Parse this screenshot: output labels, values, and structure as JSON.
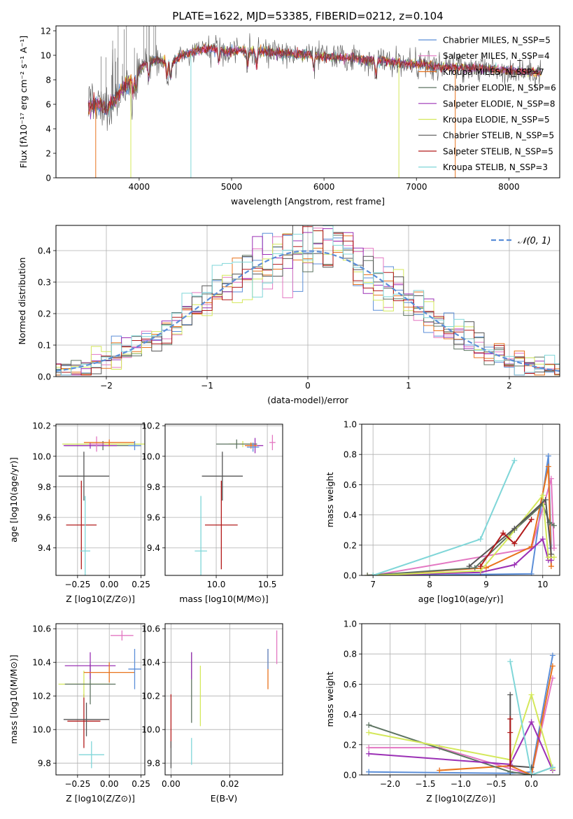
{
  "figure_title": "PLATE=1622, MJD=53385, FIBERID=0212, z=0.104",
  "chart_data": [
    {
      "id": "spectrum",
      "type": "line",
      "title": "PLATE=1622, MJD=53385, FIBERID=0212, z=0.104",
      "xlabel": "wavelength [Angstrom, rest frame]",
      "ylabel": "Flux [fλ10⁻¹⁷ erg cm⁻² s⁻¹ A⁻¹]",
      "xlim": [
        3100,
        8550
      ],
      "ylim": [
        0,
        12.4
      ],
      "xticks": [
        4000,
        5000,
        6000,
        7000,
        8000
      ],
      "yticks": [
        0,
        2,
        4,
        6,
        8,
        10,
        12
      ],
      "legend_position": "top-right",
      "series": [
        {
          "name": "Chabrier MILES, N_SSP=5",
          "color": "#5b8ed8"
        },
        {
          "name": "Salpeter MILES, N_SSP=4",
          "color": "#e377c2"
        },
        {
          "name": "Kroupa MILES, N_SSP=7",
          "color": "#e8731c"
        },
        {
          "name": "Chabrier ELODIE, N_SSP=6",
          "color": "#5d7361"
        },
        {
          "name": "Salpeter ELODIE, N_SSP=8",
          "color": "#9b30b5"
        },
        {
          "name": "Kroupa ELODIE, N_SSP=5",
          "color": "#d4e85a"
        },
        {
          "name": "Chabrier STELIB, N_SSP=5",
          "color": "#555555"
        },
        {
          "name": "Salpeter STELIB, N_SSP=5",
          "color": "#b21a1a"
        },
        {
          "name": "Kroupa STELIB, N_SSP=3",
          "color": "#7fd6d8"
        }
      ],
      "continuum": {
        "x": [
          3450,
          3550,
          3650,
          3750,
          3850,
          3950,
          4050,
          4150,
          4250,
          4350,
          4450,
          4550,
          4650,
          4750,
          4850,
          4950,
          5100,
          5300,
          5500,
          5700,
          5900,
          6100,
          6300,
          6500,
          6700,
          6900,
          7100,
          7300,
          7500,
          7700,
          7900,
          8100,
          8300
        ],
        "y": [
          5.8,
          6.0,
          5.6,
          6.6,
          7.4,
          8.2,
          9.3,
          9.6,
          9.5,
          9.3,
          10.0,
          10.2,
          10.4,
          10.5,
          10.6,
          10.3,
          10.4,
          10.3,
          10.2,
          10.1,
          10.0,
          9.8,
          9.8,
          9.6,
          9.5,
          9.3,
          9.2,
          9.0,
          9.0,
          8.9,
          8.8,
          8.7,
          8.6
        ]
      },
      "drops": [
        {
          "x": 3530,
          "color": "#e8731c"
        },
        {
          "x": 3910,
          "color": "#d4e85a"
        },
        {
          "x": 4560,
          "color": "#7fd6d8"
        },
        {
          "x": 6810,
          "color": "#d4e85a"
        },
        {
          "x": 7420,
          "color": "#e8731c"
        }
      ]
    },
    {
      "id": "residual-hist",
      "type": "histogram",
      "xlabel": "(data-model)/error",
      "ylabel": "Normed distribution",
      "xlim": [
        -2.5,
        2.5
      ],
      "ylim": [
        0,
        0.48
      ],
      "xticks": [
        -2,
        -1,
        0,
        1,
        2
      ],
      "yticks": [
        0.0,
        0.1,
        0.2,
        0.3,
        0.4
      ],
      "bin_width": 0.1,
      "legend_position": "top-right",
      "reference_curve": {
        "name": "𝒩(0, 1)",
        "color": "#5b8ed8",
        "mean": 0,
        "sigma": 1
      }
    },
    {
      "id": "age-vs-z",
      "type": "errorbar",
      "xlabel": "Z [log10(Z/Z⊙)]",
      "ylabel": "age  [log10(age/yr)]",
      "xlim": [
        -0.42,
        0.28
      ],
      "ylim": [
        9.22,
        10.21
      ],
      "xticks": [
        -0.25,
        0.0,
        0.25
      ],
      "xticklabels": [
        "−0.25",
        "0.00",
        "0.25"
      ],
      "yticks": [
        9.4,
        9.6,
        9.8,
        10.0,
        10.2
      ],
      "points": [
        {
          "x": -0.22,
          "y": 9.55,
          "xerr": 0.12,
          "yerr": 0.29,
          "color": "#b21a1a"
        },
        {
          "x": -0.19,
          "y": 9.38,
          "xerr": 0.04,
          "yerr": 0.36,
          "color": "#7fd6d8"
        },
        {
          "x": -0.2,
          "y": 9.87,
          "xerr": 0.2,
          "yerr": 0.16,
          "color": "#555555"
        },
        {
          "x": 0.0,
          "y": 10.08,
          "xerr": 0.37,
          "yerr": 0.02,
          "color": "#d4e85a"
        },
        {
          "x": -0.05,
          "y": 10.07,
          "xerr": 0.3,
          "yerr": 0.03,
          "color": "#5d7361"
        },
        {
          "x": -0.15,
          "y": 10.07,
          "xerr": 0.21,
          "yerr": 0.02,
          "color": "#9b30b5"
        },
        {
          "x": -0.1,
          "y": 10.08,
          "xerr": 0.06,
          "yerr": 0.05,
          "color": "#e377c2"
        },
        {
          "x": 0.0,
          "y": 10.09,
          "xerr": 0.2,
          "yerr": 0.02,
          "color": "#e8731c"
        },
        {
          "x": 0.2,
          "y": 10.07,
          "xerr": 0.05,
          "yerr": 0.03,
          "color": "#5b8ed8"
        }
      ]
    },
    {
      "id": "age-vs-mass",
      "type": "errorbar",
      "xlabel": "mass [log10(M/M⊙)]",
      "ylabel": "",
      "xlim": [
        9.5,
        10.65
      ],
      "ylim": [
        9.22,
        10.21
      ],
      "xticks": [
        10.0,
        10.5
      ],
      "yticks": [
        9.4,
        9.6,
        9.8,
        10.0,
        10.2
      ],
      "points": [
        {
          "x": 10.05,
          "y": 9.55,
          "xerr": 0.16,
          "yerr": 0.29,
          "color": "#b21a1a"
        },
        {
          "x": 9.85,
          "y": 9.38,
          "xerr": 0.06,
          "yerr": 0.36,
          "color": "#7fd6d8"
        },
        {
          "x": 10.06,
          "y": 9.87,
          "xerr": 0.2,
          "yerr": 0.16,
          "color": "#555555"
        },
        {
          "x": 10.26,
          "y": 10.08,
          "xerr": 0.14,
          "yerr": 0.02,
          "color": "#d4e85a"
        },
        {
          "x": 10.2,
          "y": 10.08,
          "xerr": 0.2,
          "yerr": 0.03,
          "color": "#5d7361"
        },
        {
          "x": 10.38,
          "y": 10.07,
          "xerr": 0.08,
          "yerr": 0.05,
          "color": "#9b30b5"
        },
        {
          "x": 10.55,
          "y": 10.09,
          "xerr": 0.03,
          "yerr": 0.05,
          "color": "#e377c2"
        },
        {
          "x": 10.34,
          "y": 10.07,
          "xerr": 0.06,
          "yerr": 0.02,
          "color": "#e8731c"
        },
        {
          "x": 10.36,
          "y": 10.06,
          "xerr": 0.06,
          "yerr": 0.03,
          "color": "#5b8ed8"
        }
      ]
    },
    {
      "id": "weight-vs-age",
      "type": "line",
      "xlabel": "age  [log10(age/yr)]",
      "ylabel": "mass weight",
      "xlim": [
        6.8,
        10.3
      ],
      "ylim": [
        0,
        1.0
      ],
      "xticks": [
        7,
        8,
        9,
        10
      ],
      "yticks": [
        0.0,
        0.2,
        0.4,
        0.6,
        0.8,
        1.0
      ],
      "series": [
        {
          "color": "#5b8ed8",
          "x": [
            7.5,
            9.8,
            10.1,
            10.15
          ],
          "y": [
            0.0,
            0.01,
            0.79,
            0.18
          ]
        },
        {
          "color": "#e377c2",
          "x": [
            7.0,
            9.8,
            10.15,
            10.2
          ],
          "y": [
            0.0,
            0.18,
            0.64,
            0.18
          ]
        },
        {
          "color": "#e8731c",
          "x": [
            6.9,
            9.0,
            9.8,
            10.1,
            10.15
          ],
          "y": [
            0.0,
            0.05,
            0.19,
            0.72,
            0.06
          ]
        },
        {
          "color": "#5d7361",
          "x": [
            6.9,
            8.8,
            9.5,
            10.0,
            10.12,
            10.2
          ],
          "y": [
            0.0,
            0.05,
            0.3,
            0.47,
            0.35,
            0.33
          ]
        },
        {
          "color": "#9b30b5",
          "x": [
            7.0,
            8.9,
            9.5,
            10.0,
            10.1,
            10.15
          ],
          "y": [
            0.0,
            0.02,
            0.07,
            0.24,
            0.1,
            0.1
          ]
        },
        {
          "color": "#d4e85a",
          "x": [
            7.0,
            8.9,
            9.4,
            10.0,
            10.1,
            10.2
          ],
          "y": [
            0.0,
            0.03,
            0.25,
            0.53,
            0.12,
            0.12
          ]
        },
        {
          "color": "#555555",
          "x": [
            8.7,
            9.5,
            10.05,
            10.15
          ],
          "y": [
            0.06,
            0.31,
            0.5,
            0.14
          ]
        },
        {
          "color": "#b21a1a",
          "x": [
            8.9,
            9.3,
            9.5,
            9.8
          ],
          "y": [
            0.06,
            0.28,
            0.21,
            0.37
          ]
        },
        {
          "color": "#7fd6d8",
          "x": [
            7.0,
            8.9,
            9.5
          ],
          "y": [
            0.0,
            0.24,
            0.76
          ]
        }
      ]
    },
    {
      "id": "mass-vs-z",
      "type": "errorbar",
      "xlabel": "Z [log10(Z/Z⊙)]",
      "ylabel": "mass [log10(M/M⊙)]",
      "xlim": [
        -0.42,
        0.28
      ],
      "ylim": [
        9.73,
        10.63
      ],
      "xticks": [
        -0.25,
        0.0,
        0.25
      ],
      "xticklabels": [
        "−0.25",
        "0.00",
        "0.25"
      ],
      "yticks": [
        9.8,
        10.0,
        10.2,
        10.4,
        10.6
      ],
      "points": [
        {
          "x": -0.2,
          "y": 10.05,
          "xerr": 0.13,
          "yerr": 0.16,
          "color": "#b21a1a"
        },
        {
          "x": -0.14,
          "y": 9.85,
          "xerr": 0.1,
          "yerr": 0.08,
          "color": "#7fd6d8"
        },
        {
          "x": -0.18,
          "y": 10.06,
          "xerr": 0.18,
          "yerr": 0.1,
          "color": "#555555"
        },
        {
          "x": -0.2,
          "y": 10.27,
          "xerr": 0.2,
          "yerr": 0.08,
          "color": "#d4e85a"
        },
        {
          "x": -0.15,
          "y": 10.27,
          "xerr": 0.2,
          "yerr": 0.12,
          "color": "#5d7361"
        },
        {
          "x": -0.15,
          "y": 10.38,
          "xerr": 0.2,
          "yerr": 0.08,
          "color": "#9b30b5"
        },
        {
          "x": 0.1,
          "y": 10.56,
          "xerr": 0.09,
          "yerr": 0.03,
          "color": "#e377c2"
        },
        {
          "x": 0.0,
          "y": 10.34,
          "xerr": 0.2,
          "yerr": 0.06,
          "color": "#e8731c"
        },
        {
          "x": 0.2,
          "y": 10.36,
          "xerr": 0.05,
          "yerr": 0.12,
          "color": "#5b8ed8"
        }
      ]
    },
    {
      "id": "mass-vs-ebv",
      "type": "errorbar",
      "xlabel": "E(B-V)",
      "ylabel": "",
      "xlim": [
        -0.002,
        0.038
      ],
      "ylim": [
        9.73,
        10.63
      ],
      "xticks": [
        0.0,
        0.02
      ],
      "xticklabels": [
        "0.00",
        "0.02"
      ],
      "yticks": [
        9.8,
        10.0,
        10.2,
        10.4,
        10.6
      ],
      "points": [
        {
          "x": 0.0,
          "y": 10.05,
          "xerr": 0,
          "yerr": 0.16,
          "color": "#b21a1a"
        },
        {
          "x": 0.0,
          "y": 9.85,
          "xerr": 0,
          "yerr": 0.08,
          "color": "#555555"
        },
        {
          "x": 0.007,
          "y": 9.87,
          "xerr": 0,
          "yerr": 0.08,
          "color": "#7fd6d8"
        },
        {
          "x": 0.007,
          "y": 10.25,
          "xerr": 0,
          "yerr": 0.21,
          "color": "#5d7361"
        },
        {
          "x": 0.007,
          "y": 10.38,
          "xerr": 0,
          "yerr": 0.08,
          "color": "#9b30b5"
        },
        {
          "x": 0.01,
          "y": 10.2,
          "xerr": 0,
          "yerr": 0.18,
          "color": "#d4e85a"
        },
        {
          "x": 0.033,
          "y": 10.36,
          "xerr": 0,
          "yerr": 0.12,
          "color": "#e8731c"
        },
        {
          "x": 0.033,
          "y": 10.42,
          "xerr": 0,
          "yerr": 0.06,
          "color": "#5b8ed8"
        },
        {
          "x": 0.036,
          "y": 10.49,
          "xerr": 0,
          "yerr": 0.1,
          "color": "#e377c2"
        }
      ]
    },
    {
      "id": "weight-vs-z",
      "type": "line",
      "xlabel": "Z [log10(Z/Z⊙)]",
      "ylabel": "mass weight",
      "xlim": [
        -2.4,
        0.4
      ],
      "ylim": [
        0,
        1.0
      ],
      "xticks": [
        -2.0,
        -1.5,
        -1.0,
        -0.5,
        0.0
      ],
      "xticklabels": [
        "−2.0",
        "−1.5",
        "−1.0",
        "−0.5",
        "0.0"
      ],
      "yticks": [
        0.0,
        0.2,
        0.4,
        0.6,
        0.8,
        1.0
      ],
      "series": [
        {
          "color": "#5b8ed8",
          "x": [
            -2.3,
            -0.3,
            0.0,
            0.3
          ],
          "y": [
            0.02,
            0.01,
            0.02,
            0.79
          ]
        },
        {
          "color": "#e377c2",
          "x": [
            -2.3,
            -1.3,
            0.0,
            0.3
          ],
          "y": [
            0.18,
            0.18,
            0.0,
            0.64
          ]
        },
        {
          "color": "#e8731c",
          "x": [
            -1.3,
            -0.3,
            0.0,
            0.3
          ],
          "y": [
            0.03,
            0.06,
            0.0,
            0.72
          ]
        },
        {
          "color": "#5d7361",
          "x": [
            -2.3,
            -0.3,
            0.0,
            0.3
          ],
          "y": [
            0.33,
            0.02,
            0.0,
            0.05
          ]
        },
        {
          "color": "#9b30b5",
          "x": [
            -2.3,
            -0.3,
            0.0,
            0.3
          ],
          "y": [
            0.14,
            0.07,
            0.35,
            0.03
          ]
        },
        {
          "color": "#d4e85a",
          "x": [
            -2.3,
            -0.3,
            0.0,
            0.3
          ],
          "y": [
            0.28,
            0.1,
            0.53,
            0.04
          ]
        },
        {
          "color": "#555555",
          "x": [
            -0.3,
            -0.3,
            0.0
          ],
          "y": [
            0.53,
            0.06,
            0.05
          ]
        },
        {
          "color": "#b21a1a",
          "x": [
            -0.3,
            -0.3,
            -0.3
          ],
          "y": [
            0.37,
            0.06,
            0.28
          ]
        },
        {
          "color": "#7fd6d8",
          "x": [
            -0.3,
            0.0,
            0.3
          ],
          "y": [
            0.75,
            0.0,
            0.05
          ]
        }
      ]
    }
  ]
}
